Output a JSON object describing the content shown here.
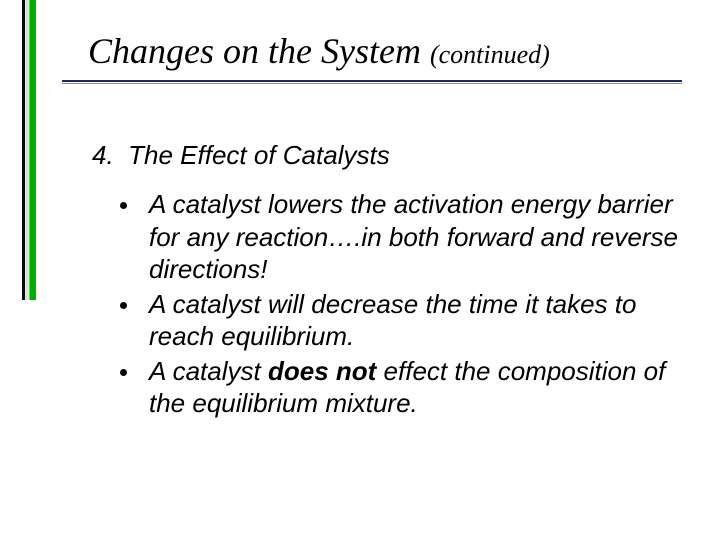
{
  "title_main": "Changes on the System ",
  "title_cont": "(continued)",
  "section_number": "4.",
  "section_title": "The Effect of Catalysts",
  "bullets": [
    {
      "pre": "A catalyst lowers the activation energy barrier for any reaction….in both forward and reverse directions!",
      "bold": "",
      "post": ""
    },
    {
      "pre": "A catalyst will decrease the time it takes to reach equilibrium.",
      "bold": "",
      "post": ""
    },
    {
      "pre": "A catalyst ",
      "bold": "does not",
      "post": " effect the composition of the equilibrium mixture."
    }
  ],
  "colors": {
    "background": "#ffffff",
    "text": "#000000",
    "underline_top": "#1a2a66",
    "underline_bottom": "#8a8aa0",
    "accent_green": "#00b000",
    "accent_gray": "#e0e0e0",
    "accent_black": "#0a0a0a"
  },
  "fonts": {
    "title_family": "Times New Roman",
    "body_family": "Arial",
    "title_size_pt": 36,
    "cont_size_pt": 26,
    "section_size_pt": 26,
    "bullet_size_pt": 26
  }
}
